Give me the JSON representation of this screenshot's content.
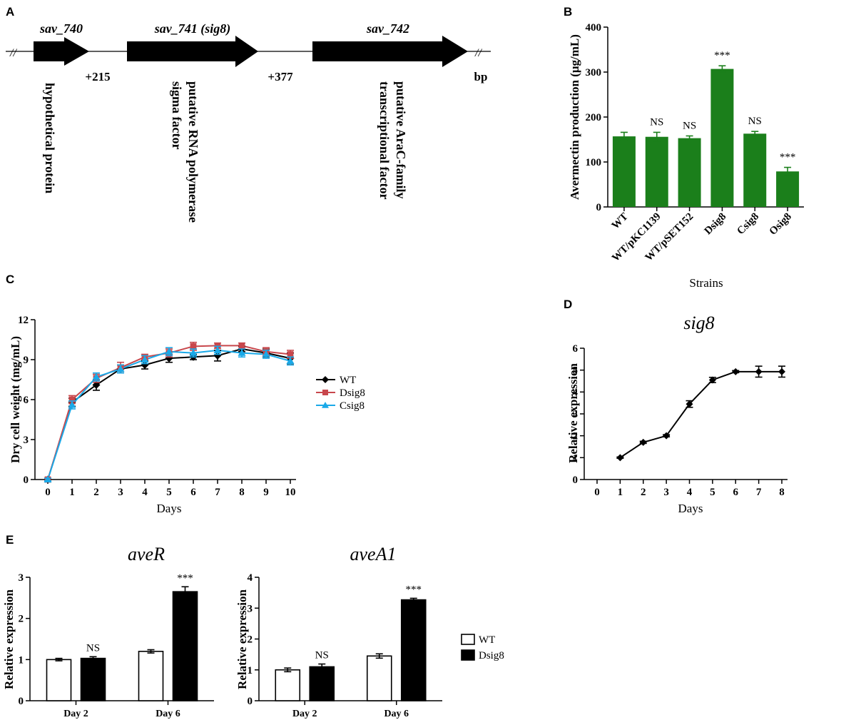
{
  "panel_letters": [
    "A",
    "B",
    "C",
    "D",
    "E"
  ],
  "panel_a": {
    "genes": [
      {
        "name": "sav_740",
        "annotation": [
          "hypothetical protein"
        ],
        "color": "#000000"
      },
      {
        "name": "sav_741 (sig8)",
        "annotation": [
          "putative RNA polymerase",
          "sigma factor"
        ],
        "color": "#000000"
      },
      {
        "name": "sav_742",
        "annotation": [
          "putative AraC-family",
          "transcriptional factor"
        ],
        "color": "#000000"
      }
    ],
    "gaps": [
      "+215",
      "+377"
    ],
    "unit": "bp"
  },
  "chart_data": [
    {
      "id": "B",
      "type": "bar",
      "title": "",
      "xlabel": "Strains",
      "ylabel": "Avermectin production (μg/mL)",
      "ylim": [
        0,
        400
      ],
      "yticks": [
        "0",
        "100",
        "200",
        "300",
        "400"
      ],
      "categories": [
        "WT",
        "WT/pKC1139",
        "WT/pSET152",
        "Dsig8",
        "Csig8",
        "Osig8"
      ],
      "values": [
        157,
        156,
        153,
        307,
        163,
        79
      ],
      "errors": [
        9,
        10,
        5,
        7,
        5,
        9
      ],
      "annotations": [
        "",
        "NS",
        "NS",
        "***",
        "NS",
        "***"
      ],
      "color": "#1b7f1b"
    },
    {
      "id": "C",
      "type": "line",
      "title": "",
      "xlabel": "Days",
      "ylabel": "Dry cell weight (mg/mL)",
      "xlim": [
        0,
        10
      ],
      "ylim": [
        0,
        12
      ],
      "x": [
        0,
        1,
        2,
        3,
        4,
        5,
        6,
        7,
        8,
        9,
        10
      ],
      "xticks": [
        "0",
        "1",
        "2",
        "3",
        "4",
        "5",
        "6",
        "7",
        "8",
        "9",
        "10"
      ],
      "yticks": [
        "0",
        "3",
        "6",
        "9",
        "12"
      ],
      "series": [
        {
          "name": "WT",
          "marker": "diamond",
          "color": "#000000",
          "values": [
            0,
            5.8,
            7.1,
            8.3,
            8.6,
            9.1,
            9.2,
            9.3,
            9.8,
            9.5,
            9.1
          ],
          "errors": [
            0.1,
            0.3,
            0.4,
            0.3,
            0.3,
            0.3,
            0.2,
            0.4,
            0.2,
            0.3,
            0.4
          ]
        },
        {
          "name": "Dsig8",
          "marker": "square",
          "color": "#c8474c",
          "values": [
            0,
            6.0,
            7.6,
            8.4,
            9.2,
            9.5,
            10.0,
            10.05,
            10.05,
            9.6,
            9.4
          ],
          "errors": [
            0.1,
            0.3,
            0.3,
            0.4,
            0.2,
            0.3,
            0.3,
            0.2,
            0.2,
            0.3,
            0.3
          ]
        },
        {
          "name": "Csig8",
          "marker": "triangle",
          "color": "#1aa9e8",
          "values": [
            0,
            5.6,
            7.7,
            8.3,
            9.0,
            9.6,
            9.5,
            9.7,
            9.5,
            9.4,
            8.9
          ],
          "errors": [
            0.1,
            0.3,
            0.3,
            0.3,
            0.3,
            0.3,
            0.3,
            0.3,
            0.3,
            0.3,
            0.3
          ]
        }
      ],
      "legend": "right"
    },
    {
      "id": "D",
      "type": "line",
      "title": "sig8",
      "xlabel": "Days",
      "ylabel": "Relative expression",
      "xlim": [
        0,
        8
      ],
      "ylim": [
        0,
        6
      ],
      "x": [
        1,
        2,
        3,
        4,
        5,
        6,
        7,
        8
      ],
      "xticks": [
        "0",
        "1",
        "2",
        "3",
        "4",
        "5",
        "6",
        "7",
        "8"
      ],
      "yticks": [
        "0",
        "1",
        "2",
        "3",
        "4",
        "5",
        "6"
      ],
      "series": [
        {
          "name": "sig8",
          "marker": "diamond",
          "color": "#000000",
          "values": [
            1.0,
            1.7,
            2.0,
            3.45,
            4.55,
            4.93,
            4.93,
            4.93
          ],
          "errors": [
            0.03,
            0.05,
            0.05,
            0.15,
            0.12,
            0.05,
            0.25,
            0.25
          ]
        }
      ]
    },
    {
      "id": "E1",
      "type": "bar",
      "title": "aveR",
      "xlabel": "",
      "ylabel": "Relative expression",
      "ylim": [
        0,
        3
      ],
      "yticks": [
        "0",
        "1",
        "2",
        "3"
      ],
      "categories": [
        "Day 2",
        "Day 6"
      ],
      "series": [
        {
          "name": "WT",
          "values": [
            1.0,
            1.2
          ],
          "errors": [
            0.03,
            0.04
          ]
        },
        {
          "name": "Dsig8",
          "values": [
            1.03,
            2.65
          ],
          "errors": [
            0.04,
            0.12
          ]
        }
      ],
      "annotations": [
        "NS",
        "***"
      ]
    },
    {
      "id": "E2",
      "type": "bar",
      "title": "aveA1",
      "xlabel": "",
      "ylabel": "Relative expression",
      "ylim": [
        0,
        4
      ],
      "yticks": [
        "0",
        "1",
        "2",
        "3",
        "4"
      ],
      "categories": [
        "Day 2",
        "Day 6"
      ],
      "series": [
        {
          "name": "WT",
          "values": [
            1.0,
            1.45
          ],
          "errors": [
            0.06,
            0.07
          ]
        },
        {
          "name": "Dsig8",
          "values": [
            1.1,
            3.27
          ],
          "errors": [
            0.09,
            0.05
          ]
        }
      ],
      "annotations": [
        "NS",
        "***"
      ]
    }
  ],
  "legend_e": [
    {
      "name": "WT",
      "fill": "#ffffff"
    },
    {
      "name": "Dsig8",
      "fill": "#000000"
    }
  ]
}
